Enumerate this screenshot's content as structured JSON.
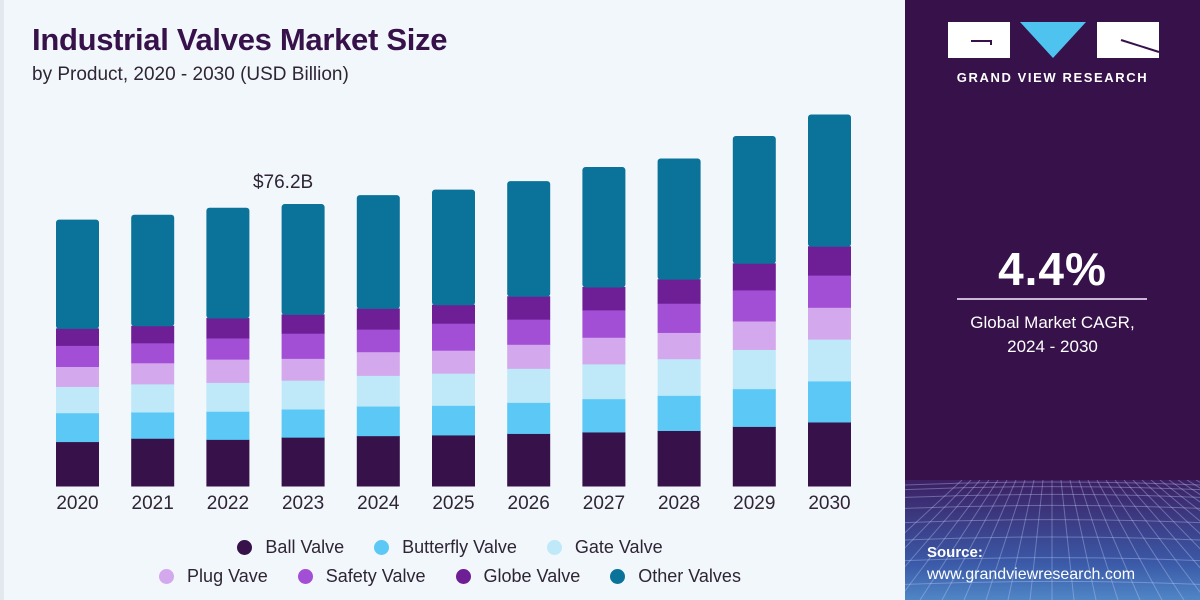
{
  "header": {
    "title": "Industrial Valves Market Size",
    "subtitle": "by Product, 2020 - 2030 (USD Billion)"
  },
  "panel": {
    "brand": "GRAND VIEW RESEARCH",
    "cagr_value": "4.4%",
    "cagr_label_line1": "Global Market CAGR,",
    "cagr_label_line2": "2024 - 2030",
    "source_label": "Source:",
    "source_url": "www.grandviewresearch.com",
    "colors": {
      "background": "#36114a",
      "logo_triangle": "#4fc3f0"
    }
  },
  "chart_data": {
    "type": "bar",
    "stacked": true,
    "title": "Industrial Valves Market Size",
    "subtitle": "by Product, 2020 - 2030 (USD Billion)",
    "xlabel": "",
    "ylabel": "USD Billion",
    "ylim": [
      0,
      105
    ],
    "grid": false,
    "legend_position": "bottom",
    "categories": [
      "2020",
      "2021",
      "2022",
      "2023",
      "2024",
      "2025",
      "2026",
      "2027",
      "2028",
      "2029",
      "2030"
    ],
    "annotations": [
      {
        "category": "2023",
        "text": "$76.2B"
      }
    ],
    "series": [
      {
        "name": "Ball Valve",
        "color": "#36114a",
        "values": [
          12.0,
          12.9,
          12.6,
          13.2,
          13.6,
          13.8,
          14.2,
          14.6,
          15.0,
          16.1,
          17.3
        ]
      },
      {
        "name": "Butterfly Valve",
        "color": "#5bc8f5",
        "values": [
          7.8,
          7.1,
          7.6,
          7.6,
          8.0,
          8.0,
          8.4,
          9.0,
          9.5,
          10.2,
          11.1
        ]
      },
      {
        "name": "Gate Valve",
        "color": "#bfe9f9",
        "values": [
          7.1,
          7.6,
          7.8,
          7.8,
          8.3,
          8.7,
          9.2,
          9.4,
          9.9,
          10.6,
          11.3
        ]
      },
      {
        "name": "Plug Vave",
        "color": "#d4a8ec",
        "values": [
          5.4,
          5.7,
          6.3,
          5.9,
          6.4,
          6.2,
          6.5,
          7.2,
          7.1,
          7.7,
          8.6
        ]
      },
      {
        "name": "Safety Valve",
        "color": "#a24fd6",
        "values": [
          5.7,
          5.4,
          5.7,
          6.8,
          6.1,
          7.3,
          6.8,
          7.4,
          7.9,
          8.4,
          8.7
        ]
      },
      {
        "name": "Globe Valve",
        "color": "#6e1f96",
        "values": [
          4.6,
          4.6,
          5.4,
          5.1,
          5.6,
          5.0,
          6.2,
          6.2,
          6.5,
          7.2,
          7.8
        ]
      },
      {
        "name": "Other Valves",
        "color": "#0b7399",
        "values": [
          29.4,
          30.0,
          29.8,
          29.8,
          30.6,
          31.1,
          31.1,
          32.4,
          32.6,
          34.4,
          35.6
        ]
      }
    ]
  },
  "legend": {
    "row1": [
      {
        "label": "Ball Valve",
        "color": "#36114a"
      },
      {
        "label": "Butterfly Valve",
        "color": "#5bc8f5"
      },
      {
        "label": "Gate Valve",
        "color": "#bfe9f9"
      }
    ],
    "row2": [
      {
        "label": "Plug Vave",
        "color": "#d4a8ec"
      },
      {
        "label": "Safety Valve",
        "color": "#a24fd6"
      },
      {
        "label": "Globe Valve",
        "color": "#6e1f96"
      },
      {
        "label": "Other Valves",
        "color": "#0b7399"
      }
    ]
  }
}
